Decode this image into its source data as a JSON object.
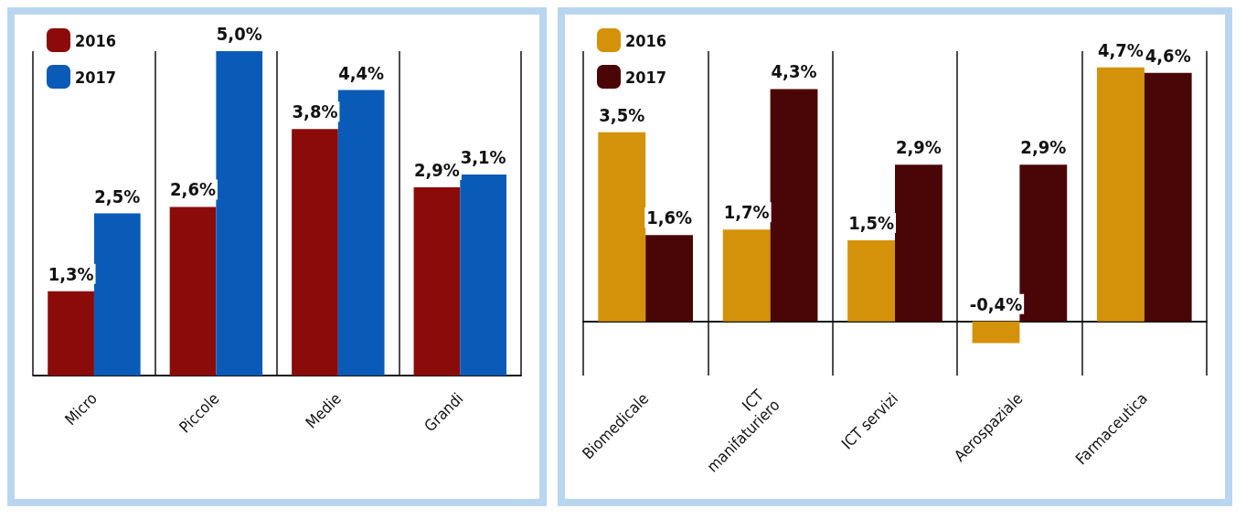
{
  "chart_data": [
    {
      "type": "bar",
      "categories": [
        "Micro",
        "Piccole",
        "Medie",
        "Grandi"
      ],
      "legend": "top left",
      "grid": "x",
      "series": [
        {
          "name": "2016",
          "color": "#8b0a0a",
          "values": [
            1.3,
            2.6,
            3.8,
            2.9
          ],
          "value_labels": [
            "1,3%",
            "2,6%",
            "3,8%",
            "2,9%"
          ]
        },
        {
          "name": "2017",
          "color": "#0a5ab8",
          "values": [
            2.5,
            5.0,
            4.4,
            3.1
          ],
          "value_labels": [
            "2,5%",
            "5,0%",
            "4,4%",
            "3,1%"
          ]
        }
      ]
    },
    {
      "type": "bar",
      "categories": [
        "Biomedicale",
        "ICT manifaturiero",
        "ICT servizi",
        "Aerospaziale",
        "Farmaceutica"
      ],
      "legend": "top left",
      "grid": "x",
      "series": [
        {
          "name": "2016",
          "color": "#d4920a",
          "values": [
            3.5,
            1.7,
            1.5,
            -0.4,
            4.7
          ],
          "value_labels": [
            "3,5%",
            "1,7%",
            "1,5%",
            "-0,4%",
            "4,7%"
          ]
        },
        {
          "name": "2017",
          "color": "#4a0606",
          "values": [
            1.6,
            4.3,
            2.9,
            2.9,
            4.6
          ],
          "value_labels": [
            "1,6%",
            "4,3%",
            "2,9%",
            "2,9%",
            "4,6%"
          ]
        }
      ]
    }
  ]
}
